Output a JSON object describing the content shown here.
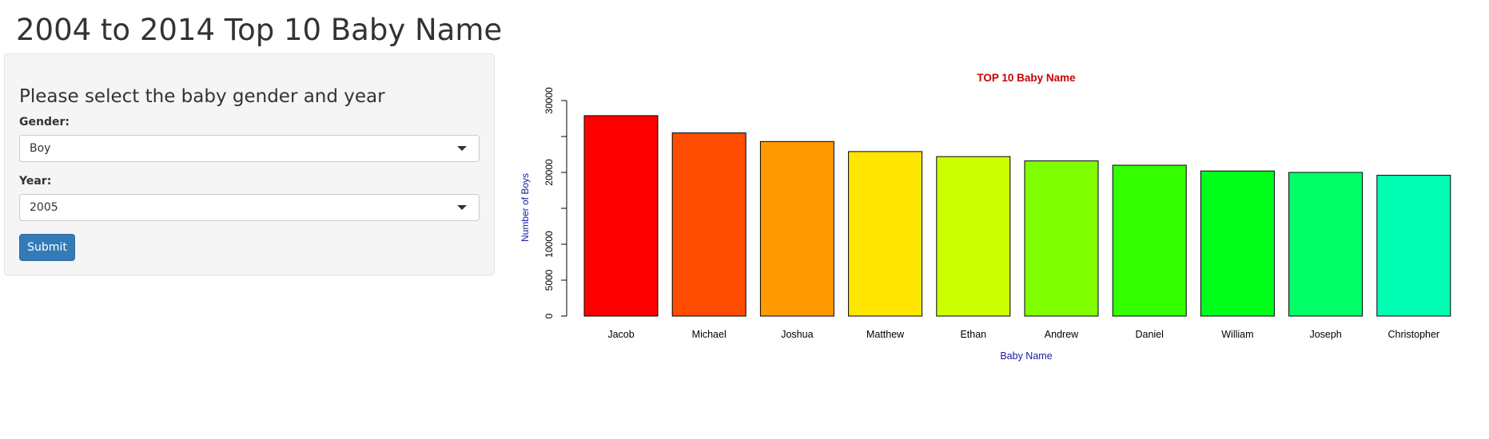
{
  "page": {
    "title": "2004 to 2014 Top 10 Baby Name"
  },
  "sidebar": {
    "heading": "Please select the baby gender and year",
    "gender_label": "Gender:",
    "gender_value": "Boy",
    "year_label": "Year:",
    "year_value": "2005",
    "submit_label": "Submit"
  },
  "colors": {
    "title": "#cc0000",
    "axis_label": "#1a1aa6",
    "submit": "#337ab7"
  },
  "chart_data": {
    "type": "bar",
    "title": "TOP 10 Baby Name",
    "xlabel": "Baby Name",
    "ylabel": "Number of Boys",
    "categories": [
      "Jacob",
      "Michael",
      "Joshua",
      "Matthew",
      "Ethan",
      "Andrew",
      "Daniel",
      "William",
      "Joseph",
      "Christopher"
    ],
    "values": [
      27900,
      25500,
      24300,
      22900,
      22200,
      21600,
      21000,
      20200,
      20000,
      19600
    ],
    "colors": [
      "#ff0000",
      "#ff4d00",
      "#ff9900",
      "#ffe600",
      "#ccff00",
      "#80ff00",
      "#33ff00",
      "#00ff1a",
      "#00ff66",
      "#00ffb3"
    ],
    "yticks": [
      0,
      5000,
      10000,
      20000,
      30000
    ],
    "ylim": [
      0,
      30000
    ],
    "grid": false,
    "legend": "none"
  }
}
